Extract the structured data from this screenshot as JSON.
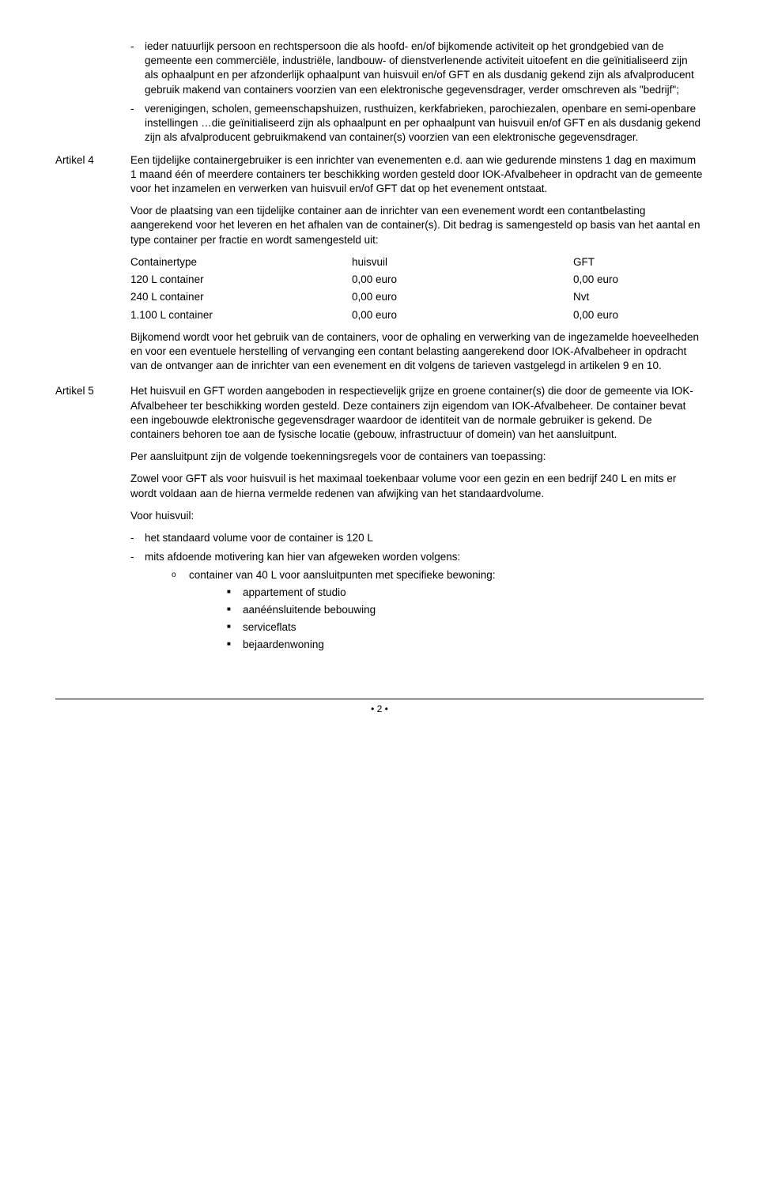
{
  "pre_bullets": [
    "ieder natuurlijk persoon en rechtspersoon die als hoofd- en/of bijkomende activiteit op het grondgebied van de gemeente een commerciële, industriële, landbouw- of dienstverlenende activiteit uitoefent en die geïnitialiseerd zijn als ophaalpunt en per afzonderlijk ophaalpunt van huisvuil en/of GFT en als dusdanig gekend zijn als afvalproducent gebruik makend van containers voorzien van een elektronische gegevensdrager, verder omschreven als \"bedrijf\";",
    "verenigingen, scholen, gemeenschapshuizen, rusthuizen, kerkfabrieken, parochiezalen, openbare en semi-openbare instellingen …die geïnitialiseerd zijn als ophaalpunt en per ophaalpunt van huisvuil en/of GFT en als dusdanig gekend zijn als afvalproducent gebruikmakend van container(s) voorzien van een elektronische gegevensdrager."
  ],
  "art4": {
    "label": "Artikel 4",
    "p1": "Een tijdelijke containergebruiker is een inrichter van evenementen e.d. aan wie gedurende minstens 1 dag en maximum 1 maand één of meerdere containers ter beschikking worden gesteld door IOK-Afvalbeheer in opdracht van de gemeente voor het inzamelen en verwerken van huisvuil en/of GFT dat op het evenement ontstaat.",
    "p2": "Voor de plaatsing van een tijdelijke container aan de inrichter van een evenement wordt een contantbelasting aangerekend voor het leveren en het afhalen van de container(s). Dit bedrag is samengesteld op basis van het aantal en type container per fractie en wordt samengesteld uit:",
    "table": {
      "header": [
        "Containertype",
        "huisvuil",
        "GFT"
      ],
      "rows": [
        [
          "120 L container",
          "0,00 euro",
          "0,00 euro"
        ],
        [
          "240 L container",
          "0,00 euro",
          "Nvt"
        ],
        [
          "1.100 L container",
          "0,00 euro",
          "0,00 euro"
        ]
      ]
    },
    "p3": "Bijkomend wordt voor het gebruik van de containers, voor de ophaling en verwerking van de ingezamelde hoeveelheden en voor een eventuele herstelling of vervanging een contant belasting aangerekend door IOK-Afvalbeheer in opdracht van de ontvanger aan de inrichter van een evenement en dit volgens de tarieven vastgelegd in artikelen 9 en 10."
  },
  "art5": {
    "label": "Artikel 5",
    "p1": "Het huisvuil en GFT worden aangeboden in respectievelijk grijze en groene container(s) die door de gemeente via IOK-Afvalbeheer ter beschikking worden gesteld. Deze containers zijn eigendom van IOK-Afvalbeheer. De container bevat een ingebouwde elektronische gegevensdrager waardoor de identiteit van de normale gebruiker is gekend. De containers behoren toe aan de fysische locatie (gebouw, infrastructuur of domein) van het aansluitpunt.",
    "p2": "Per aansluitpunt zijn de volgende toekenningsregels voor de containers van toepassing:",
    "p3": "Zowel voor GFT als voor huisvuil is het maximaal toekenbaar volume voor een gezin en een bedrijf 240 L en mits er wordt voldaan aan de hierna vermelde redenen van afwijking van het standaardvolume.",
    "p4": "Voor huisvuil:",
    "huisvuil_bullets": [
      "het standaard volume voor de container is 120 L",
      "mits afdoende motivering kan hier van afgeweken worden volgens:"
    ],
    "sub_o": "container van 40 L voor aansluitpunten met specifieke bewoning:",
    "sub_sq": [
      "appartement of studio",
      "aanéénsluitende bebouwing",
      "serviceflats",
      "bejaardenwoning"
    ]
  },
  "page_number": "• 2 •"
}
